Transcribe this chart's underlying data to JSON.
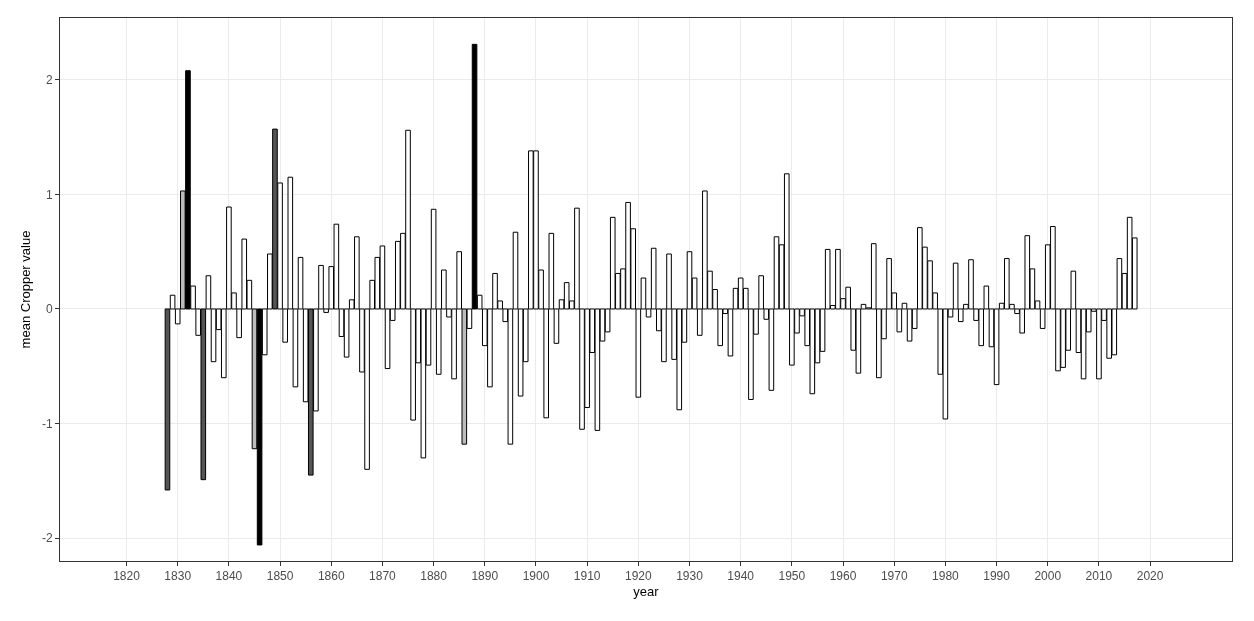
{
  "chart_data": {
    "type": "bar",
    "xlabel": "year",
    "ylabel": "mean Cropper value",
    "x": [
      1828,
      1829,
      1830,
      1831,
      1832,
      1833,
      1834,
      1835,
      1836,
      1837,
      1838,
      1839,
      1840,
      1841,
      1842,
      1843,
      1844,
      1845,
      1846,
      1847,
      1848,
      1849,
      1850,
      1851,
      1852,
      1853,
      1854,
      1855,
      1856,
      1857,
      1858,
      1859,
      1860,
      1861,
      1862,
      1863,
      1864,
      1865,
      1866,
      1867,
      1868,
      1869,
      1870,
      1871,
      1872,
      1873,
      1874,
      1875,
      1876,
      1877,
      1878,
      1879,
      1880,
      1881,
      1882,
      1883,
      1884,
      1885,
      1886,
      1887,
      1888,
      1889,
      1890,
      1891,
      1892,
      1893,
      1894,
      1895,
      1896,
      1897,
      1898,
      1899,
      1900,
      1901,
      1902,
      1903,
      1904,
      1905,
      1906,
      1907,
      1908,
      1909,
      1910,
      1911,
      1912,
      1913,
      1914,
      1915,
      1916,
      1917,
      1918,
      1919,
      1920,
      1921,
      1922,
      1923,
      1924,
      1925,
      1926,
      1927,
      1928,
      1929,
      1930,
      1931,
      1932,
      1933,
      1934,
      1935,
      1936,
      1937,
      1938,
      1939,
      1940,
      1941,
      1942,
      1943,
      1944,
      1945,
      1946,
      1947,
      1948,
      1949,
      1950,
      1951,
      1952,
      1953,
      1954,
      1955,
      1956,
      1957,
      1958,
      1959,
      1960,
      1961,
      1962,
      1963,
      1964,
      1965,
      1966,
      1967,
      1968,
      1969,
      1970,
      1971,
      1972,
      1973,
      1974,
      1975,
      1976,
      1977,
      1978,
      1979,
      1980,
      1981,
      1982,
      1983,
      1984,
      1985,
      1986,
      1987,
      1988,
      1989,
      1990,
      1991,
      1992,
      1993,
      1994,
      1995,
      1996,
      1997,
      1998,
      1999,
      2000,
      2001,
      2002,
      2003,
      2004,
      2005,
      2006,
      2007,
      2008,
      2009,
      2010,
      2011,
      2012,
      2013,
      2014,
      2015,
      2016,
      2017
    ],
    "values": [
      -1.58,
      0.12,
      -0.13,
      1.03,
      2.08,
      0.2,
      -0.23,
      -1.49,
      0.29,
      -0.46,
      -0.18,
      -0.6,
      0.89,
      0.14,
      -0.25,
      0.61,
      0.25,
      -1.22,
      -2.06,
      -0.4,
      0.48,
      1.57,
      1.1,
      -0.29,
      1.15,
      -0.68,
      0.45,
      -0.81,
      -1.45,
      -0.89,
      0.38,
      -0.03,
      0.37,
      0.74,
      -0.24,
      -0.42,
      0.08,
      0.63,
      -0.55,
      -1.4,
      0.25,
      0.45,
      0.55,
      -0.52,
      -0.1,
      0.59,
      0.66,
      1.56,
      -0.97,
      -0.47,
      -1.3,
      -0.49,
      0.87,
      -0.57,
      0.34,
      -0.07,
      -0.61,
      0.5,
      -1.18,
      -0.17,
      2.31,
      0.12,
      -0.32,
      -0.68,
      0.31,
      0.07,
      -0.11,
      -1.18,
      0.67,
      -0.76,
      -0.46,
      1.38,
      1.38,
      0.34,
      -0.95,
      0.66,
      -0.3,
      0.08,
      0.23,
      0.07,
      0.88,
      -1.05,
      -0.86,
      -0.38,
      -1.06,
      -0.28,
      -0.2,
      0.8,
      0.31,
      0.35,
      0.93,
      0.7,
      -0.77,
      0.27,
      -0.07,
      0.53,
      -0.19,
      -0.46,
      0.48,
      -0.44,
      -0.88,
      -0.29,
      0.5,
      0.27,
      -0.23,
      1.03,
      0.33,
      0.17,
      -0.32,
      -0.04,
      -0.41,
      0.18,
      0.27,
      0.18,
      -0.79,
      -0.22,
      0.29,
      -0.09,
      -0.71,
      0.63,
      0.56,
      1.18,
      -0.49,
      -0.21,
      -0.06,
      -0.32,
      -0.74,
      -0.47,
      -0.37,
      0.52,
      0.03,
      0.52,
      0.09,
      0.19,
      -0.36,
      -0.56,
      0.04,
      0.01,
      0.57,
      -0.6,
      -0.26,
      0.44,
      0.14,
      -0.2,
      0.05,
      -0.28,
      -0.17,
      0.71,
      0.54,
      0.42,
      0.14,
      -0.57,
      -0.96,
      -0.07,
      0.4,
      -0.11,
      0.04,
      0.43,
      -0.1,
      -0.32,
      0.2,
      -0.33,
      -0.66,
      0.05,
      0.44,
      0.04,
      -0.04,
      -0.21,
      0.64,
      0.35,
      0.07,
      -0.17,
      0.56,
      0.72,
      -0.54,
      -0.51,
      -0.36,
      0.33,
      -0.38,
      -0.61,
      -0.2,
      -0.02,
      -0.61,
      -0.1,
      -0.43,
      -0.4,
      0.44,
      0.31,
      0.8,
      0.62
    ],
    "colors": [
      "#555555",
      "#ffffff",
      "#ffffff",
      "#bbbbbb",
      "#000000",
      "#ffffff",
      "#ffffff",
      "#555555",
      "#ffffff",
      "#ffffff",
      "#ffffff",
      "#ffffff",
      "#ffffff",
      "#ffffff",
      "#ffffff",
      "#ffffff",
      "#ffffff",
      "#bbbbbb",
      "#000000",
      "#ffffff",
      "#ffffff",
      "#555555",
      "#ffffff",
      "#ffffff",
      "#ffffff",
      "#ffffff",
      "#ffffff",
      "#ffffff",
      "#555555",
      "#ffffff",
      "#ffffff",
      "#ffffff",
      "#ffffff",
      "#ffffff",
      "#ffffff",
      "#ffffff",
      "#ffffff",
      "#ffffff",
      "#ffffff",
      "#ffffff",
      "#ffffff",
      "#ffffff",
      "#ffffff",
      "#ffffff",
      "#ffffff",
      "#ffffff",
      "#ffffff",
      "#ffffff",
      "#ffffff",
      "#ffffff",
      "#ffffff",
      "#ffffff",
      "#ffffff",
      "#ffffff",
      "#ffffff",
      "#ffffff",
      "#ffffff",
      "#ffffff",
      "#bbbbbb",
      "#ffffff",
      "#000000",
      "#ffffff",
      "#ffffff",
      "#ffffff",
      "#ffffff",
      "#ffffff",
      "#ffffff",
      "#ffffff",
      "#ffffff",
      "#ffffff",
      "#ffffff",
      "#ffffff",
      "#ffffff",
      "#ffffff",
      "#ffffff",
      "#ffffff",
      "#ffffff",
      "#ffffff",
      "#ffffff",
      "#ffffff",
      "#ffffff",
      "#ffffff",
      "#ffffff",
      "#ffffff",
      "#ffffff",
      "#ffffff",
      "#ffffff",
      "#ffffff",
      "#ffffff",
      "#ffffff",
      "#ffffff",
      "#ffffff",
      "#ffffff",
      "#ffffff",
      "#ffffff",
      "#ffffff",
      "#ffffff",
      "#ffffff",
      "#ffffff",
      "#ffffff",
      "#ffffff",
      "#ffffff",
      "#ffffff",
      "#ffffff",
      "#ffffff",
      "#ffffff",
      "#ffffff",
      "#ffffff",
      "#ffffff",
      "#ffffff",
      "#ffffff",
      "#ffffff",
      "#ffffff",
      "#ffffff",
      "#ffffff",
      "#ffffff",
      "#ffffff",
      "#ffffff",
      "#ffffff",
      "#ffffff",
      "#ffffff",
      "#ffffff",
      "#ffffff",
      "#ffffff",
      "#ffffff",
      "#ffffff",
      "#ffffff",
      "#ffffff",
      "#ffffff",
      "#ffffff",
      "#ffffff",
      "#ffffff",
      "#ffffff",
      "#ffffff",
      "#ffffff",
      "#ffffff",
      "#ffffff",
      "#ffffff",
      "#ffffff",
      "#ffffff",
      "#ffffff",
      "#ffffff",
      "#ffffff",
      "#ffffff",
      "#ffffff",
      "#ffffff",
      "#ffffff",
      "#ffffff",
      "#ffffff",
      "#ffffff",
      "#ffffff",
      "#ffffff",
      "#ffffff",
      "#ffffff",
      "#ffffff",
      "#ffffff",
      "#ffffff",
      "#ffffff",
      "#ffffff",
      "#ffffff",
      "#ffffff",
      "#ffffff",
      "#ffffff",
      "#ffffff",
      "#ffffff",
      "#ffffff",
      "#ffffff",
      "#ffffff",
      "#ffffff",
      "#ffffff",
      "#ffffff",
      "#ffffff",
      "#ffffff",
      "#ffffff",
      "#ffffff",
      "#ffffff",
      "#ffffff",
      "#ffffff",
      "#ffffff",
      "#ffffff",
      "#ffffff",
      "#ffffff",
      "#ffffff",
      "#ffffff",
      "#ffffff",
      "#ffffff",
      "#ffffff",
      "#ffffff",
      "#ffffff",
      "#ffffff"
    ],
    "xlim": [
      1807,
      2036
    ],
    "xticks": [
      1820,
      1830,
      1840,
      1850,
      1860,
      1870,
      1880,
      1890,
      1900,
      1910,
      1920,
      1930,
      1940,
      1950,
      1960,
      1970,
      1980,
      1990,
      2000,
      2010,
      2020
    ],
    "ylim": [
      -2.2,
      2.54
    ],
    "yticks": [
      -2,
      -1,
      0,
      1,
      2
    ],
    "grid": true
  }
}
